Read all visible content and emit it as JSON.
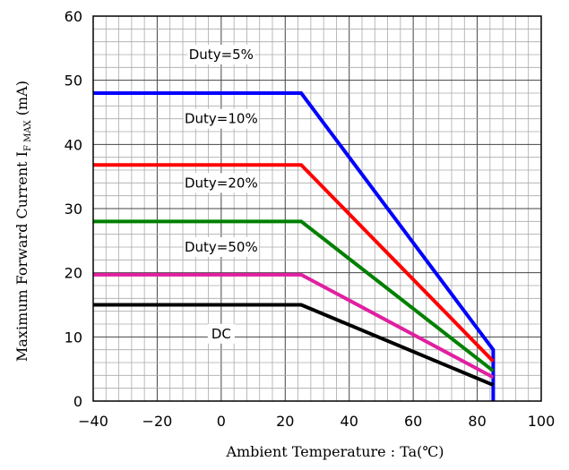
{
  "chart_data": {
    "type": "line",
    "xlabel": "Ambient Temperature : Ta(℃)",
    "ylabel_main": "Maximum Forward Current I",
    "ylabel_sub": "F MAX",
    "ylabel_unit": " (mA)",
    "xlim": [
      -40,
      100
    ],
    "ylim": [
      0,
      60
    ],
    "x_ticks": [
      "−40",
      "−20",
      "0",
      "20",
      "40",
      "60",
      "80",
      "100"
    ],
    "y_ticks": [
      "0",
      "10",
      "20",
      "30",
      "40",
      "50",
      "60"
    ],
    "x_tick_values": [
      -40,
      -20,
      0,
      20,
      40,
      60,
      80,
      100
    ],
    "y_tick_values": [
      0,
      10,
      20,
      30,
      40,
      50,
      60
    ],
    "grid": true,
    "series": [
      {
        "name": "Duty=5%",
        "color": "#0000ff",
        "x": [
          -40,
          25,
          85,
          85
        ],
        "y": [
          48,
          48,
          8,
          0
        ]
      },
      {
        "name": "Duty=10%",
        "color": "#ff0000",
        "x": [
          -40,
          25,
          85
        ],
        "y": [
          36.8,
          36.8,
          6.2
        ]
      },
      {
        "name": "Duty=20%",
        "color": "#008000",
        "x": [
          -40,
          25,
          85
        ],
        "y": [
          28,
          28,
          4.7
        ]
      },
      {
        "name": "Duty=50%",
        "color": "#e020a0",
        "x": [
          -40,
          25,
          85
        ],
        "y": [
          19.7,
          19.7,
          3.7
        ]
      },
      {
        "name": "DC",
        "color": "#000000",
        "x": [
          -40,
          25,
          85
        ],
        "y": [
          15,
          15,
          2.5
        ]
      }
    ],
    "labels": [
      {
        "text": "Duty=5%",
        "x": 0,
        "y": 54
      },
      {
        "text": "Duty=10%",
        "x": 0,
        "y": 44
      },
      {
        "text": "Duty=20%",
        "x": 0,
        "y": 34
      },
      {
        "text": "Duty=50%",
        "x": 0,
        "y": 24
      },
      {
        "text": "DC",
        "x": 0,
        "y": 10.5
      }
    ]
  }
}
